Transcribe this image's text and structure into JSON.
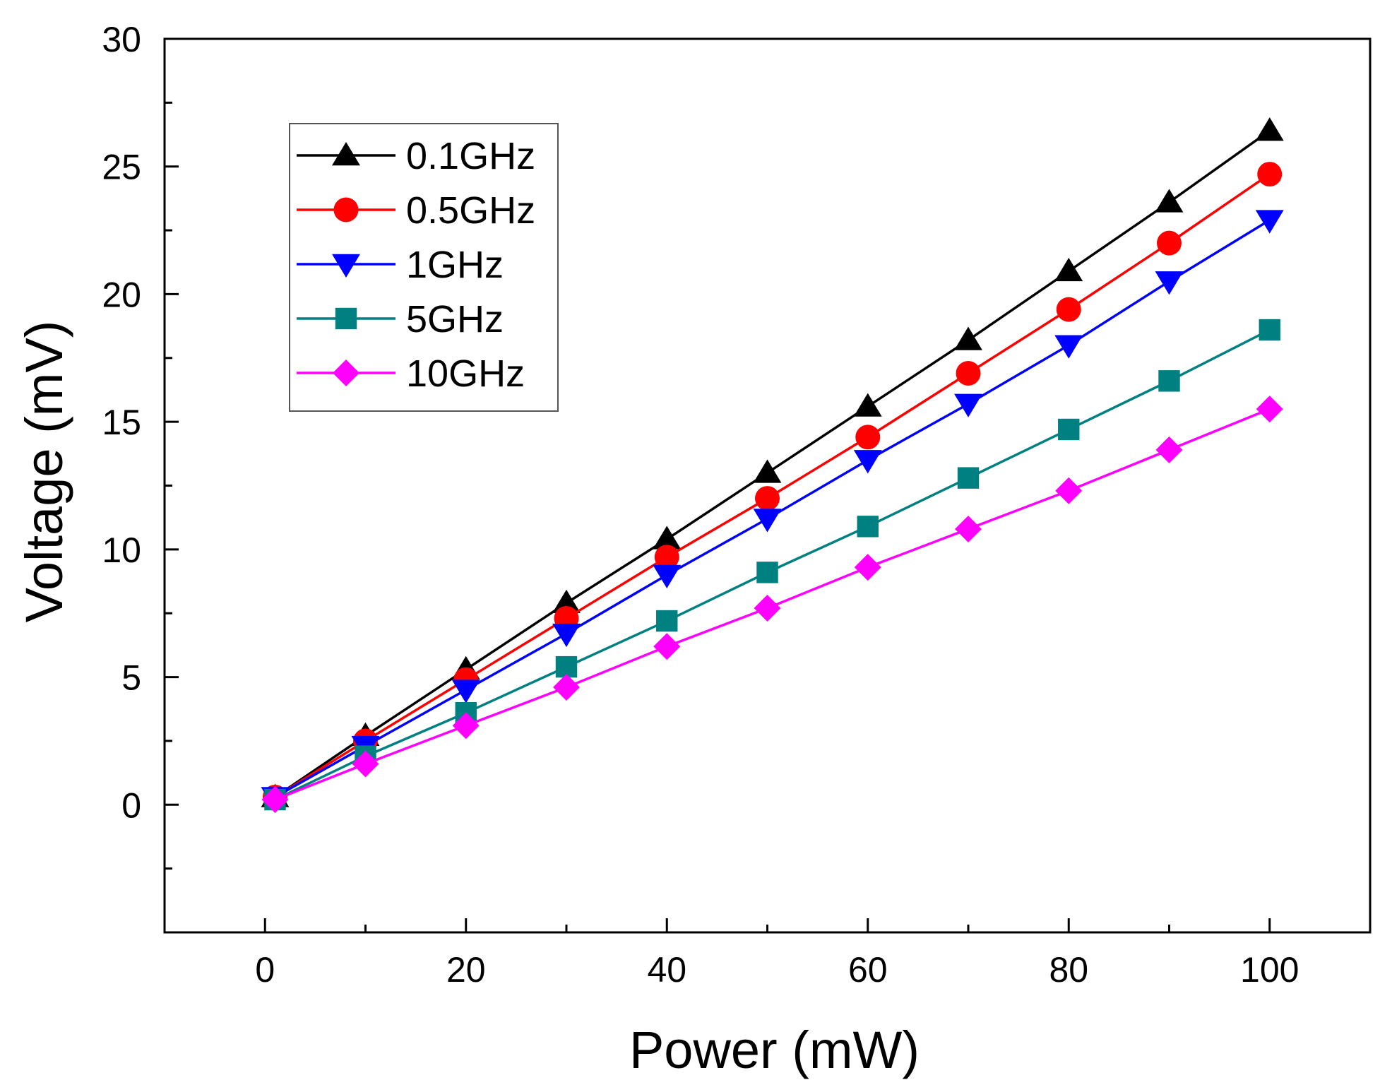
{
  "chart_data": {
    "type": "line",
    "xlabel": "Power (mW)",
    "ylabel": "Voltage (mV)",
    "xlim": [
      -10,
      110
    ],
    "ylim": [
      -5,
      30
    ],
    "x_ticks": [
      0,
      20,
      40,
      60,
      80,
      100
    ],
    "y_ticks": [
      0,
      5,
      10,
      15,
      20,
      25,
      30
    ],
    "grid": false,
    "legend_position": "top-left",
    "x": [
      1,
      10,
      20,
      30,
      40,
      50,
      60,
      70,
      80,
      90,
      100
    ],
    "series": [
      {
        "name": "0.1GHz",
        "color": "#000000",
        "marker": "triangle-up",
        "values": [
          0.3,
          2.7,
          5.3,
          7.9,
          10.4,
          13.0,
          15.6,
          18.2,
          20.9,
          23.6,
          26.4
        ]
      },
      {
        "name": "0.5GHz",
        "color": "#ff0000",
        "marker": "circle",
        "values": [
          0.3,
          2.5,
          4.9,
          7.3,
          9.7,
          12.0,
          14.4,
          16.9,
          19.4,
          22.0,
          24.7
        ]
      },
      {
        "name": "1GHz",
        "color": "#0000ff",
        "marker": "triangle-down",
        "values": [
          0.3,
          2.3,
          4.5,
          6.7,
          9.0,
          11.2,
          13.5,
          15.7,
          18.0,
          20.5,
          22.9
        ]
      },
      {
        "name": "5GHz",
        "color": "#008080",
        "marker": "square",
        "values": [
          0.2,
          1.9,
          3.6,
          5.4,
          7.2,
          9.1,
          10.9,
          12.8,
          14.7,
          16.6,
          18.6
        ]
      },
      {
        "name": "10GHz",
        "color": "#ff00ff",
        "marker": "diamond",
        "values": [
          0.2,
          1.6,
          3.1,
          4.6,
          6.2,
          7.7,
          9.3,
          10.8,
          12.3,
          13.9,
          15.5
        ]
      }
    ]
  }
}
